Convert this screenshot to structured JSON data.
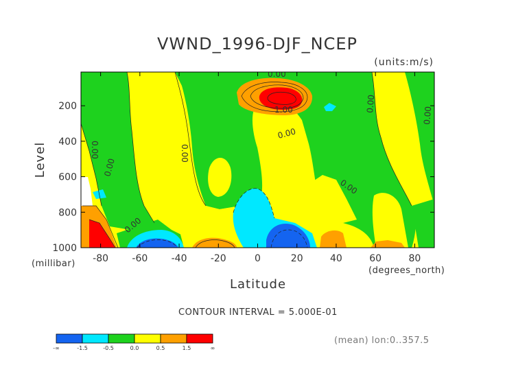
{
  "chart_data": {
    "type": "contour",
    "title": "VWND_1996-DJF_NCEP",
    "units_label": "(units:m/s)",
    "xlabel": "Latitude",
    "x_units_label": "(degrees_north)",
    "ylabel": "Level",
    "y_units_label": "(millibar)",
    "xlim": [
      -90,
      90
    ],
    "ylim": [
      1000,
      10
    ],
    "y_inverted": true,
    "x_ticks": [
      -80,
      -60,
      -40,
      -20,
      0,
      20,
      40,
      60,
      80
    ],
    "y_ticks": [
      200,
      400,
      600,
      800,
      1000
    ],
    "contour_interval_label": "CONTOUR INTERVAL = 5.000E-01",
    "contour_labels": [
      "0.00",
      "0.00",
      "0.00",
      "0.00",
      "0.00",
      "1.00",
      "0.00",
      "0.00",
      "0.00",
      "0.00"
    ],
    "colorbar": {
      "labels": [
        "-∞",
        "-1.5",
        "-0.5",
        "0.0",
        "0.5",
        "1.5",
        "∞"
      ],
      "colors": [
        "#1464f0",
        "#00e8ff",
        "#1ed21e",
        "#ffff00",
        "#ffa000",
        "#ff0000"
      ]
    },
    "footer_label": "(mean) lon:0..357.5",
    "regions": [
      {
        "level": "positive",
        "description": "strong positive core",
        "lat_range": [
          0,
          18
        ],
        "p_range": [
          100,
          250
        ],
        "max_value": 2.0
      },
      {
        "level": "negative",
        "description": "near-surface negative core",
        "lat_range": [
          -70,
          -38
        ],
        "p_range": [
          900,
          1000
        ],
        "min_value": -2.0
      },
      {
        "level": "negative",
        "description": "near-surface negative core",
        "lat_range": [
          5,
          30
        ],
        "p_range": [
          820,
          1000
        ],
        "min_value": -2.0
      },
      {
        "level": "positive",
        "description": "near-surface positive core",
        "lat_range": [
          -90,
          -78
        ],
        "p_range": [
          800,
          1000
        ],
        "max_value": 2.0
      }
    ]
  }
}
